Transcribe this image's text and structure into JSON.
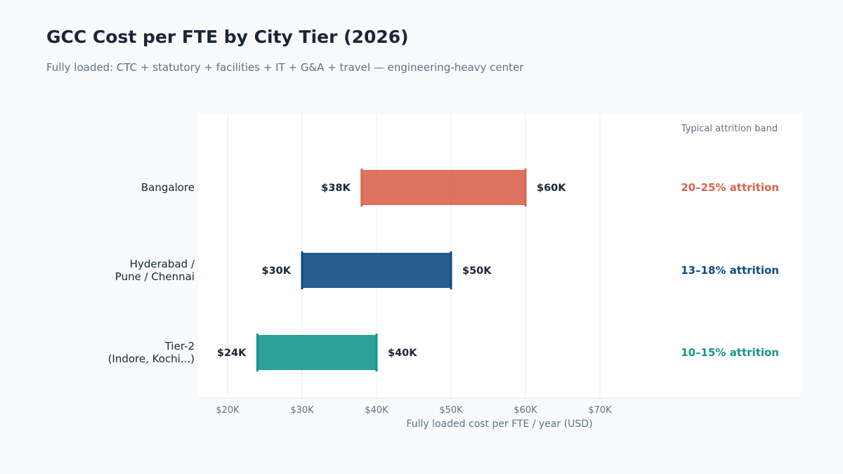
{
  "chart_data": {
    "type": "bar",
    "orientation": "horizontal-range",
    "title": "GCC Cost per FTE by City Tier (2026)",
    "subtitle": "Fully loaded: CTC + statutory + facilities + IT + G&A + travel — engineering-heavy center",
    "xlabel": "Fully loaded cost per FTE / year (USD)",
    "ylabel": "",
    "xlim": [
      16000,
      80000
    ],
    "x_ticks": [
      20000,
      30000,
      40000,
      50000,
      60000,
      70000
    ],
    "x_tick_labels": [
      "$20K",
      "$30K",
      "$40K",
      "$50K",
      "$60K",
      "$70K"
    ],
    "grid": "vertical",
    "band_header": "Typical attrition band",
    "categories": [
      {
        "label_lines": [
          "Bangalore"
        ],
        "low": 38000,
        "high": 60000,
        "low_label": "$38K",
        "high_label": "$60K",
        "attrition": "20–25% attrition",
        "color": "#d9634c"
      },
      {
        "label_lines": [
          "Hyderabad /",
          "Pune / Chennai"
        ],
        "low": 30000,
        "high": 50000,
        "low_label": "$30K",
        "high_label": "$50K",
        "attrition": "13–18% attrition",
        "color": "#0f4c81"
      },
      {
        "label_lines": [
          "Tier-2",
          "(Indore, Kochi...)"
        ],
        "low": 24000,
        "high": 40000,
        "low_label": "$24K",
        "high_label": "$40K",
        "attrition": "10–15% attrition",
        "color": "#13988a"
      }
    ]
  }
}
